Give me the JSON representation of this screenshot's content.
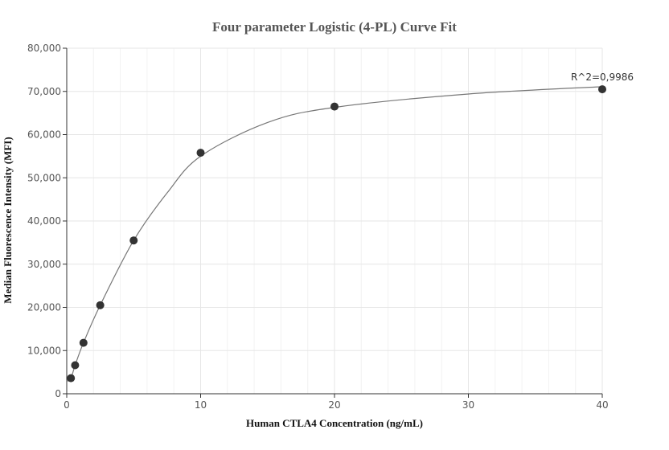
{
  "chart_data": {
    "type": "scatter",
    "title": "Four parameter Logistic (4-PL) Curve Fit",
    "xlabel": "Human CTLA4 Concentration (ng/mL)",
    "ylabel": "Median Fluorescence Intensity (MFI)",
    "xlim": [
      0,
      40
    ],
    "ylim": [
      0,
      80000
    ],
    "x_ticks": [
      0,
      10,
      20,
      30,
      40
    ],
    "x_tick_labels": [
      "0",
      "10",
      "20",
      "30",
      "40"
    ],
    "y_ticks": [
      0,
      10000,
      20000,
      30000,
      40000,
      50000,
      60000,
      70000,
      80000
    ],
    "y_tick_labels": [
      "0",
      "10,000",
      "20,000",
      "30,000",
      "40,000",
      "50,000",
      "60,000",
      "70,000",
      "80,000"
    ],
    "grid": true,
    "series": [
      {
        "x": [
          0.3125,
          0.625,
          1.25,
          2.5,
          5,
          10,
          20,
          40
        ],
        "y": [
          3600,
          6600,
          11800,
          20500,
          35500,
          55800,
          66500,
          70500
        ]
      }
    ],
    "fit_curve": {
      "x": [
        0,
        0.3125,
        0.625,
        1.25,
        2.5,
        5,
        7.5,
        10,
        15,
        20,
        30,
        40
      ],
      "y": [
        2900,
        3600,
        6600,
        11800,
        20500,
        35500,
        46500,
        55000,
        62800,
        66300,
        69400,
        71100
      ]
    },
    "annotation": "R^2=0,9986",
    "colors": {
      "marker": "#333333",
      "curve": "#777777",
      "grid": "#e6e6e6",
      "axis": "#333333"
    }
  }
}
